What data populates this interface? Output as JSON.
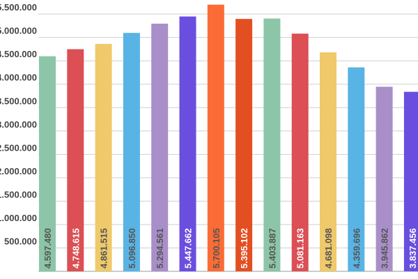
{
  "chart_data": {
    "type": "bar",
    "categories": [
      null,
      null,
      null,
      null,
      null,
      null,
      null,
      null,
      null,
      null,
      null,
      null,
      null,
      null
    ],
    "values": [
      4597480,
      4748615,
      4861515,
      5096850,
      5294561,
      5447662,
      5700105,
      5395102,
      5403887,
      5081163,
      4681098,
      4359696,
      3945862,
      3837456
    ],
    "value_labels": [
      "4.597.480",
      "4.748.615",
      "4.861.515",
      "5.096.850",
      "5.294.561",
      "5.447.662",
      "5.700.105",
      "5.395.102",
      "5.403.887",
      "5.081.163",
      "4.681.098",
      "4.359.696",
      "3.945.862",
      "3.837.456"
    ],
    "colors": [
      "#8cc5a8",
      "#db4f55",
      "#efc96a",
      "#58b4e4",
      "#a98fc9",
      "#6a4ee0",
      "#fb6b35",
      "#e44f22",
      "#8cc5a8",
      "#db4f55",
      "#efc96a",
      "#58b4e4",
      "#a98fc9",
      "#6a4ee0"
    ],
    "value_label_colors": [
      "#555555",
      "#ffffff",
      "#555555",
      "#555555",
      "#555555",
      "#ffffff",
      "#555555",
      "#ffffff",
      "#555555",
      "#ffffff",
      "#555555",
      "#555555",
      "#555555",
      "#ffffff"
    ],
    "ylim": [
      0,
      5800000
    ],
    "yticks": [
      {
        "value": 500000,
        "label": "500.000"
      },
      {
        "value": 1000000,
        "label": "1.000.000"
      },
      {
        "value": 1500000,
        "label": "1.500.000"
      },
      {
        "value": 2000000,
        "label": "2.000.000"
      },
      {
        "value": 2500000,
        "label": "2.500.000"
      },
      {
        "value": 3000000,
        "label": "3.000.000"
      },
      {
        "value": 3500000,
        "label": "3.500.000"
      },
      {
        "value": 4000000,
        "label": "4.000.000"
      },
      {
        "value": 4500000,
        "label": "4.500.000"
      },
      {
        "value": 5000000,
        "label": "5.000.000"
      },
      {
        "value": 5500000,
        "label": "5.500.000"
      }
    ],
    "grid": true
  }
}
